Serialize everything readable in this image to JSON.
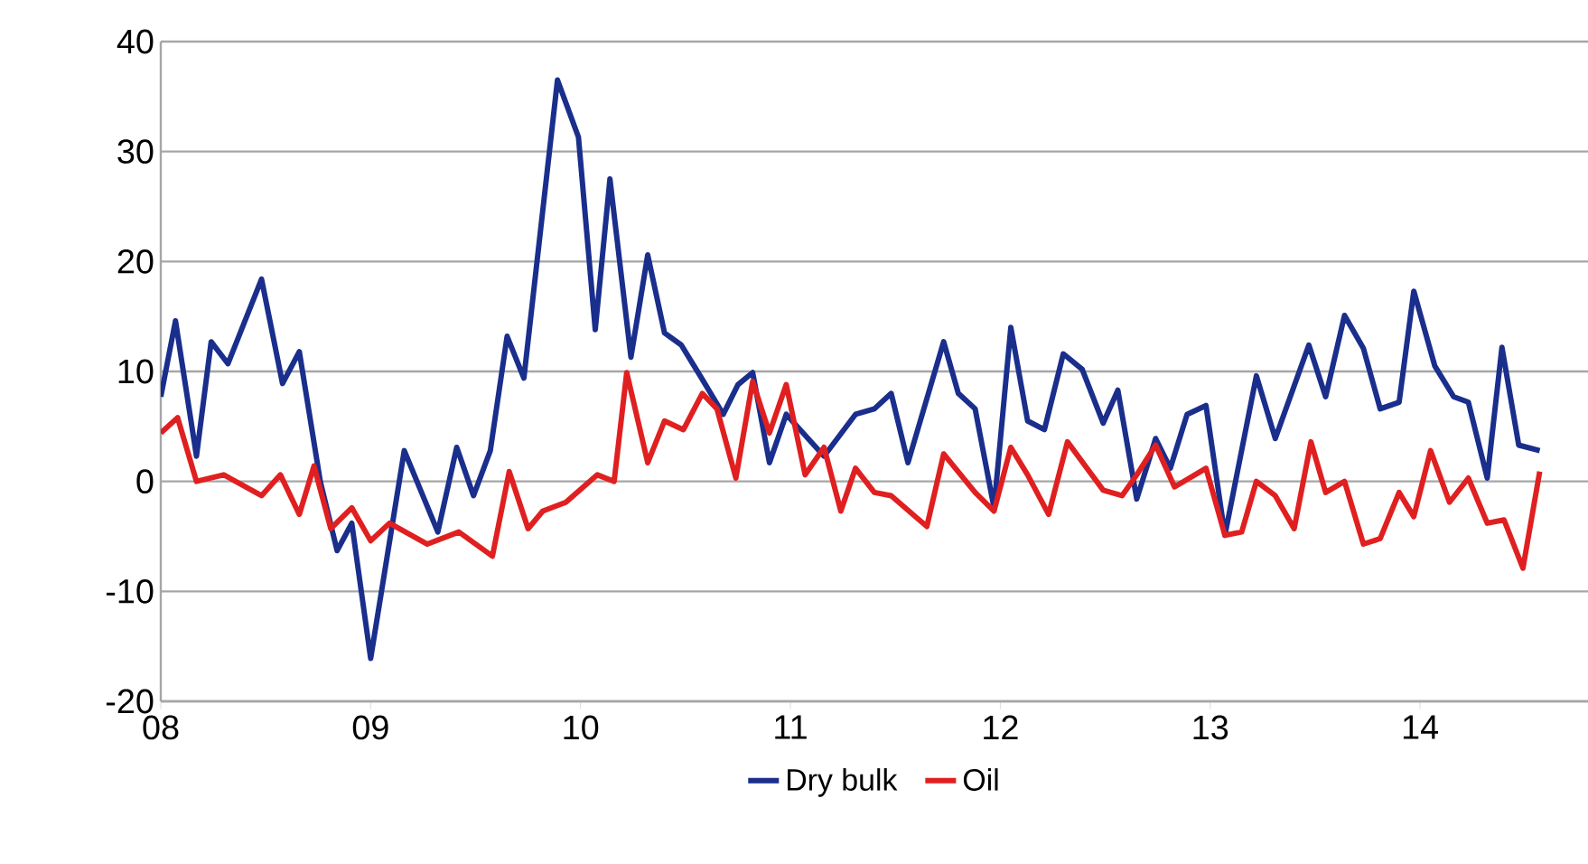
{
  "chart_data": {
    "type": "line",
    "xlim": [
      2008,
      2014.8
    ],
    "ylim": [
      -20,
      40
    ],
    "xticks": [
      {
        "value": 2008,
        "label": "08"
      },
      {
        "value": 2009,
        "label": "09"
      },
      {
        "value": 2010,
        "label": "10"
      },
      {
        "value": 2011,
        "label": "11"
      },
      {
        "value": 2012,
        "label": "12"
      },
      {
        "value": 2013,
        "label": "13"
      },
      {
        "value": 2014,
        "label": "14"
      }
    ],
    "yticks": [
      -20,
      -10,
      0,
      10,
      20,
      30,
      40
    ],
    "grid": "y",
    "legend": "bottom",
    "series": [
      {
        "name": "Dry bulk",
        "color": "#1a2e8c",
        "x": [
          2008.0,
          2008.07,
          2008.17,
          2008.24,
          2008.32,
          2008.48,
          2008.58,
          2008.66,
          2008.76,
          2008.84,
          2008.91,
          2009.0,
          2009.16,
          2009.32,
          2009.41,
          2009.49,
          2009.57,
          2009.65,
          2009.73,
          2009.89,
          2009.99,
          2010.07,
          2010.14,
          2010.24,
          2010.32,
          2010.4,
          2010.48,
          2010.57,
          2010.68,
          2010.75,
          2010.82,
          2010.9,
          2010.98,
          2011.16,
          2011.31,
          2011.4,
          2011.48,
          2011.56,
          2011.73,
          2011.8,
          2011.88,
          2011.97,
          2012.05,
          2012.13,
          2012.21,
          2012.3,
          2012.39,
          2012.49,
          2012.56,
          2012.65,
          2012.74,
          2012.81,
          2012.89,
          2012.98,
          2013.07,
          2013.22,
          2013.31,
          2013.47,
          2013.55,
          2013.64,
          2013.73,
          2013.81,
          2013.9,
          2013.97,
          2014.07,
          2014.16,
          2014.23,
          2014.32,
          2014.39,
          2014.47,
          2014.57
        ],
        "values": [
          7.7,
          14.6,
          2.3,
          12.7,
          10.7,
          18.4,
          8.9,
          11.8,
          0,
          -6.3,
          -3.8,
          -16.1,
          2.8,
          -4.6,
          3.1,
          -1.3,
          2.8,
          13.2,
          9.4,
          36.5,
          31.3,
          13.8,
          27.5,
          11.3,
          20.6,
          13.5,
          12.4,
          9.6,
          6.1,
          8.8,
          9.9,
          1.7,
          6.1,
          2.3,
          6.1,
          6.6,
          8.0,
          1.7,
          12.7,
          8.0,
          6.6,
          -2.4,
          14.0,
          5.5,
          4.7,
          11.6,
          10.2,
          5.3,
          8.3,
          -1.6,
          3.9,
          1.2,
          6.1,
          6.9,
          -4.9,
          9.6,
          3.9,
          12.4,
          7.7,
          15.1,
          12.1,
          6.6,
          7.2,
          17.3,
          10.5,
          7.7,
          7.2,
          0.3,
          12.2,
          3.3,
          2.8
        ]
      },
      {
        "name": "Oil",
        "color": "#e02020",
        "x": [
          2008.0,
          2008.08,
          2008.17,
          2008.3,
          2008.48,
          2008.57,
          2008.66,
          2008.73,
          2008.81,
          2008.91,
          2009.0,
          2009.09,
          2009.27,
          2009.42,
          2009.58,
          2009.66,
          2009.75,
          2009.82,
          2009.93,
          2010.08,
          2010.16,
          2010.22,
          2010.32,
          2010.4,
          2010.49,
          2010.58,
          2010.65,
          2010.74,
          2010.82,
          2010.9,
          2010.98,
          2011.07,
          2011.16,
          2011.24,
          2011.31,
          2011.4,
          2011.48,
          2011.65,
          2011.73,
          2011.88,
          2011.97,
          2012.05,
          2012.13,
          2012.23,
          2012.32,
          2012.49,
          2012.58,
          2012.65,
          2012.74,
          2012.83,
          2012.98,
          2013.07,
          2013.15,
          2013.22,
          2013.31,
          2013.4,
          2013.48,
          2013.55,
          2013.64,
          2013.73,
          2013.81,
          2013.9,
          2013.97,
          2014.05,
          2014.14,
          2014.23,
          2014.32,
          2014.4,
          2014.49,
          2014.57
        ],
        "values": [
          4.4,
          5.8,
          0.0,
          0.6,
          -1.3,
          0.6,
          -3.0,
          1.4,
          -4.3,
          -2.4,
          -5.4,
          -3.8,
          -5.7,
          -4.6,
          -6.8,
          0.9,
          -4.3,
          -2.7,
          -1.9,
          0.6,
          0.0,
          9.9,
          1.7,
          5.5,
          4.7,
          8.0,
          6.6,
          0.3,
          9.1,
          4.4,
          8.8,
          0.6,
          3.1,
          -2.7,
          1.2,
          -1.0,
          -1.3,
          -4.1,
          2.5,
          -1.0,
          -2.7,
          3.1,
          0.6,
          -3.0,
          3.6,
          -0.8,
          -1.3,
          0.6,
          3.3,
          -0.5,
          1.2,
          -4.9,
          -4.6,
          0.0,
          -1.3,
          -4.3,
          3.6,
          -1.0,
          0.0,
          -5.7,
          -5.2,
          -1.0,
          -3.2,
          2.8,
          -1.9,
          0.3,
          -3.8,
          -3.5,
          -7.9,
          0.9
        ]
      }
    ]
  }
}
